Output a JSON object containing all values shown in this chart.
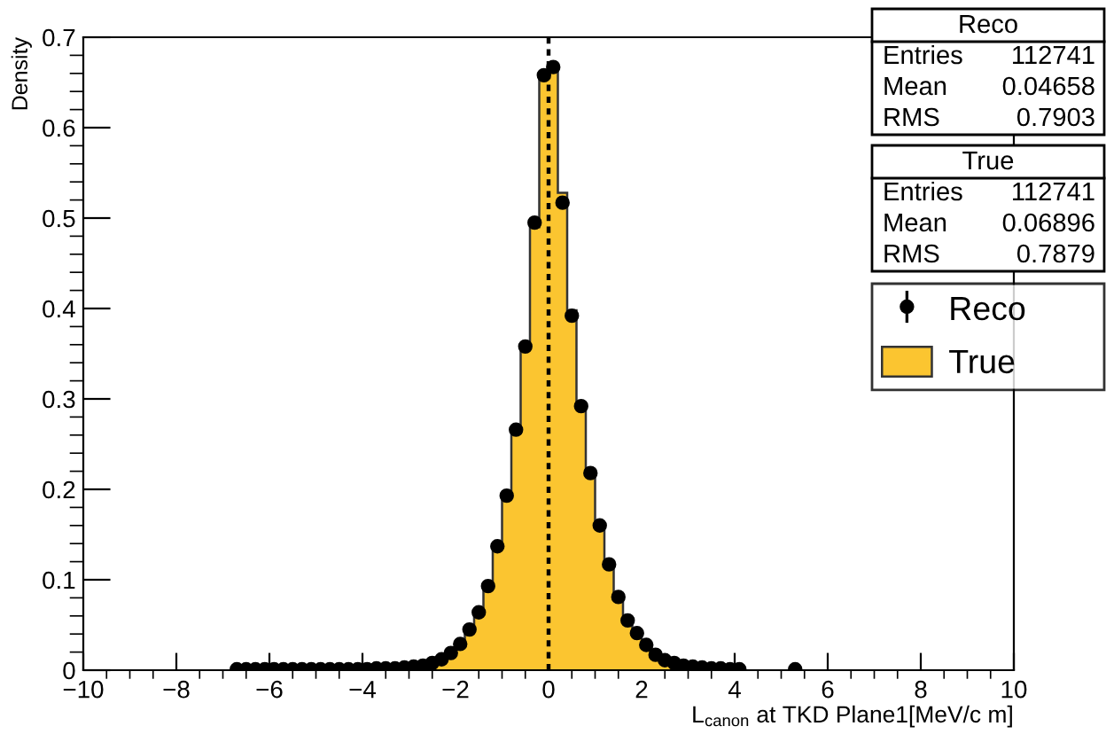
{
  "chart_data": {
    "type": "histogram",
    "xlabel": "L$_{canon}$ at TKD Plane1[MeV/c m]",
    "ylabel": "Density",
    "bins": [
      -4,
      -3.8,
      -3.6,
      -3.4,
      -3.2,
      -3,
      -2.8,
      -2.6,
      -2.4,
      -2.2,
      -2,
      -1.8,
      -1.6,
      -1.4,
      -1.2,
      -1,
      -0.8,
      -0.6,
      -0.4,
      -0.2,
      0,
      0.2,
      0.4,
      0.6,
      0.8,
      1,
      1.2,
      1.4,
      1.6,
      1.8,
      2,
      2.2,
      2.4,
      2.6,
      2.8,
      3,
      3.2,
      3.4,
      3.6,
      3.8,
      4
    ],
    "series": [
      {
        "name": "Reco",
        "type": "scatter",
        "color": "#000000",
        "marker": "circle",
        "x": [
          -6.7,
          -6.5,
          -6.3,
          -6.1,
          -5.9,
          -5.7,
          -5.5,
          -5.3,
          -5.1,
          -4.9,
          -4.7,
          -4.5,
          -4.3,
          -4.1,
          -3.9,
          -3.7,
          -3.5,
          -3.3,
          -3.1,
          -2.9,
          -2.7,
          -2.5,
          -2.3,
          -2.1,
          -1.9,
          -1.7,
          -1.5,
          -1.3,
          -1.1,
          -0.9,
          -0.7,
          -0.5,
          -0.3,
          -0.1,
          0.1,
          0.3,
          0.5,
          0.7,
          0.9,
          1.1,
          1.3,
          1.5,
          1.7,
          1.9,
          2.1,
          2.3,
          2.5,
          2.7,
          2.9,
          3.1,
          3.3,
          3.5,
          3.7,
          3.9,
          4.1,
          5.3
        ],
        "values": [
          0.001,
          0.001,
          0.001,
          0.001,
          0.001,
          0.001,
          0.001,
          0.001,
          0.001,
          0.001,
          0.001,
          0.001,
          0.001,
          0.001,
          0.001,
          0.002,
          0.002,
          0.002,
          0.003,
          0.004,
          0.005,
          0.008,
          0.012,
          0.019,
          0.029,
          0.045,
          0.064,
          0.093,
          0.137,
          0.193,
          0.266,
          0.358,
          0.495,
          0.658,
          0.667,
          0.517,
          0.392,
          0.292,
          0.218,
          0.16,
          0.117,
          0.081,
          0.055,
          0.041,
          0.028,
          0.017,
          0.011,
          0.008,
          0.005,
          0.004,
          0.003,
          0.002,
          0.002,
          0.001,
          0.001,
          0.001
        ]
      },
      {
        "name": "True",
        "color": "#fbc530",
        "values": [
          0.001,
          0.001,
          0.002,
          0.002,
          0.003,
          0.004,
          0.005,
          0.007,
          0.011,
          0.018,
          0.028,
          0.044,
          0.063,
          0.092,
          0.135,
          0.19,
          0.262,
          0.355,
          0.49,
          0.66,
          0.665,
          0.528,
          0.398,
          0.295,
          0.22,
          0.162,
          0.118,
          0.083,
          0.057,
          0.041,
          0.028,
          0.018,
          0.011,
          0.008,
          0.005,
          0.004,
          0.003,
          0.002,
          0.002,
          0.001
        ]
      }
    ],
    "ref_lines": [
      {
        "axis": "x",
        "value": 0,
        "color": "#000000",
        "line_style": "dashed"
      }
    ],
    "xlim": [
      -10,
      10
    ],
    "xticks": [
      -10,
      -8,
      -6,
      -4,
      -2,
      0,
      2,
      4,
      6,
      8,
      10
    ],
    "ylim": [
      0,
      0.7
    ],
    "yticks": [
      0,
      0.1,
      0.2,
      0.3,
      0.4,
      0.5,
      0.6,
      0.7
    ],
    "legend": "top right",
    "annotations": [
      "Reco",
      "Entries 112741",
      "Mean 0.04658",
      "RMS 0.7903",
      "True",
      "Entries 112741",
      "Mean 0.06896",
      "RMS 0.7879"
    ]
  }
}
